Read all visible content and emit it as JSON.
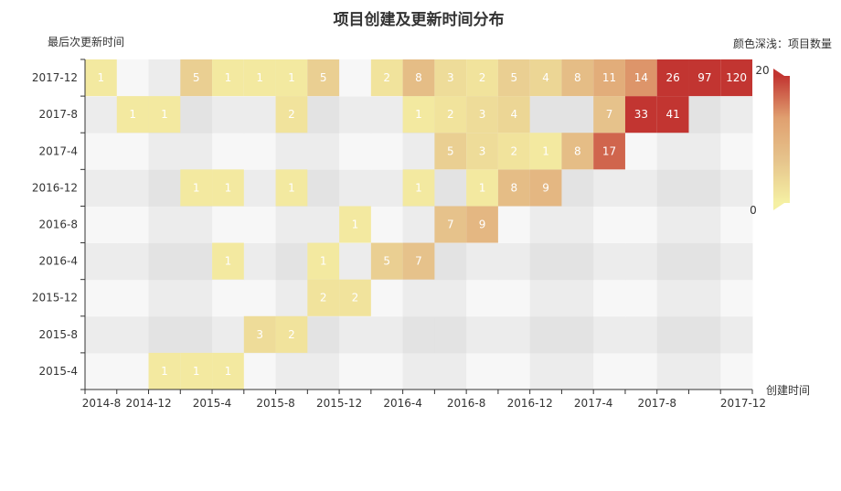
{
  "chart_data": {
    "type": "heatmap",
    "title": "项目创建及更新时间分布",
    "xlabel": "创建时间",
    "ylabel": "最后次更新时间",
    "x": [
      "2014-8",
      "2014-10",
      "2014-12",
      "2015-2",
      "2015-4",
      "2015-6",
      "2015-8",
      "2015-10",
      "2015-12",
      "2016-2",
      "2016-4",
      "2016-6",
      "2016-8",
      "2016-10",
      "2016-12",
      "2017-2",
      "2017-4",
      "2017-6",
      "2017-8",
      "2017-10",
      "2017-12"
    ],
    "x_ticks": [
      "2014-8",
      "2014-12",
      "2015-4",
      "2015-8",
      "2015-12",
      "2016-4",
      "2016-8",
      "2016-12",
      "2017-4",
      "2017-8",
      "2017-12"
    ],
    "y": [
      "2015-4",
      "2015-8",
      "2015-12",
      "2016-4",
      "2016-8",
      "2016-12",
      "2017-4",
      "2017-8",
      "2017-12"
    ],
    "cells": [
      [
        "2015-4",
        "2014-12",
        1
      ],
      [
        "2015-4",
        "2015-2",
        1
      ],
      [
        "2015-4",
        "2015-4",
        1
      ],
      [
        "2015-8",
        "2015-6",
        3
      ],
      [
        "2015-8",
        "2015-8",
        2
      ],
      [
        "2015-12",
        "2015-10",
        2
      ],
      [
        "2015-12",
        "2015-12",
        2
      ],
      [
        "2016-4",
        "2015-4",
        1
      ],
      [
        "2016-4",
        "2015-10",
        1
      ],
      [
        "2016-4",
        "2016-2",
        5
      ],
      [
        "2016-4",
        "2016-4",
        7
      ],
      [
        "2016-8",
        "2015-12",
        1
      ],
      [
        "2016-8",
        "2016-6",
        7
      ],
      [
        "2016-8",
        "2016-8",
        9
      ],
      [
        "2016-12",
        "2015-2",
        1
      ],
      [
        "2016-12",
        "2015-4",
        1
      ],
      [
        "2016-12",
        "2015-8",
        1
      ],
      [
        "2016-12",
        "2016-4",
        1
      ],
      [
        "2016-12",
        "2016-8",
        1
      ],
      [
        "2016-12",
        "2016-10",
        8
      ],
      [
        "2016-12",
        "2016-12",
        9
      ],
      [
        "2017-4",
        "2016-6",
        5
      ],
      [
        "2017-4",
        "2016-8",
        3
      ],
      [
        "2017-4",
        "2016-10",
        2
      ],
      [
        "2017-4",
        "2016-12",
        1
      ],
      [
        "2017-4",
        "2017-2",
        8
      ],
      [
        "2017-4",
        "2017-4",
        17
      ],
      [
        "2017-8",
        "2014-10",
        1
      ],
      [
        "2017-8",
        "2014-12",
        1
      ],
      [
        "2017-8",
        "2015-8",
        2
      ],
      [
        "2017-8",
        "2016-4",
        1
      ],
      [
        "2017-8",
        "2016-6",
        2
      ],
      [
        "2017-8",
        "2016-8",
        3
      ],
      [
        "2017-8",
        "2016-10",
        4
      ],
      [
        "2017-8",
        "2017-4",
        7
      ],
      [
        "2017-8",
        "2017-6",
        33
      ],
      [
        "2017-8",
        "2017-8",
        41
      ],
      [
        "2017-12",
        "2014-8",
        1
      ],
      [
        "2017-12",
        "2015-2",
        5
      ],
      [
        "2017-12",
        "2015-4",
        1
      ],
      [
        "2017-12",
        "2015-6",
        1
      ],
      [
        "2017-12",
        "2015-8",
        1
      ],
      [
        "2017-12",
        "2015-10",
        5
      ],
      [
        "2017-12",
        "2016-2",
        2
      ],
      [
        "2017-12",
        "2016-4",
        8
      ],
      [
        "2017-12",
        "2016-6",
        3
      ],
      [
        "2017-12",
        "2016-8",
        2
      ],
      [
        "2017-12",
        "2016-10",
        5
      ],
      [
        "2017-12",
        "2016-12",
        4
      ],
      [
        "2017-12",
        "2017-2",
        8
      ],
      [
        "2017-12",
        "2017-4",
        11
      ],
      [
        "2017-12",
        "2017-6",
        14
      ],
      [
        "2017-12",
        "2017-8",
        26
      ],
      [
        "2017-12",
        "2017-10",
        97
      ],
      [
        "2017-12",
        "2017-12",
        120
      ]
    ],
    "visual_map": {
      "title": "颜色深浅：项目数量",
      "min": 0,
      "max": 20,
      "colors": [
        "#f5f0a3",
        "#e6c48c",
        "#e0a070",
        "#c23531"
      ]
    },
    "band_colors": [
      "#fafafa",
      "#efefef"
    ],
    "column_band_colors": [
      "#f7f7f7",
      "#ececec",
      "#e3e3e3"
    ],
    "grid": false
  }
}
